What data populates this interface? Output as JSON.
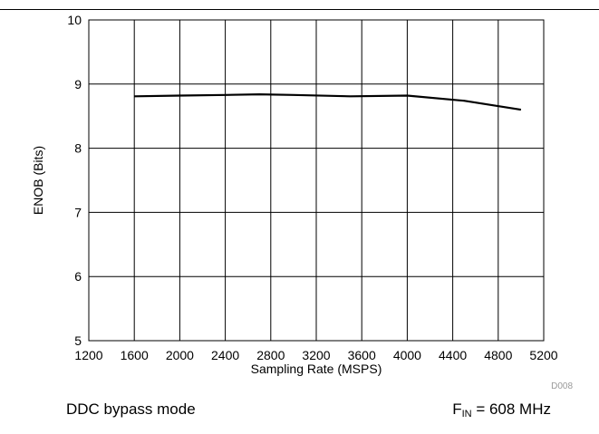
{
  "chart_data": {
    "type": "line",
    "title": "",
    "xlabel": "Sampling Rate (MSPS)",
    "ylabel": "ENOB (Bits)",
    "xlim": [
      1200,
      5200
    ],
    "ylim": [
      5,
      10
    ],
    "xticks": [
      1200,
      1600,
      2000,
      2400,
      2800,
      3200,
      3600,
      4000,
      4400,
      4800,
      5200
    ],
    "yticks": [
      5,
      6,
      7,
      8,
      9,
      10
    ],
    "grid": true,
    "series": [
      {
        "color": "#000000",
        "x": [
          1600,
          2000,
          2400,
          2700,
          3000,
          3500,
          4000,
          4500,
          5000
        ],
        "y": [
          8.81,
          8.82,
          8.83,
          8.84,
          8.83,
          8.81,
          8.82,
          8.74,
          8.6
        ]
      }
    ]
  },
  "figure_id": "D008",
  "caption": {
    "left": "DDC bypass mode",
    "right_symbol": "F",
    "right_subscript": "IN",
    "right_value": " = 608 MHz"
  }
}
